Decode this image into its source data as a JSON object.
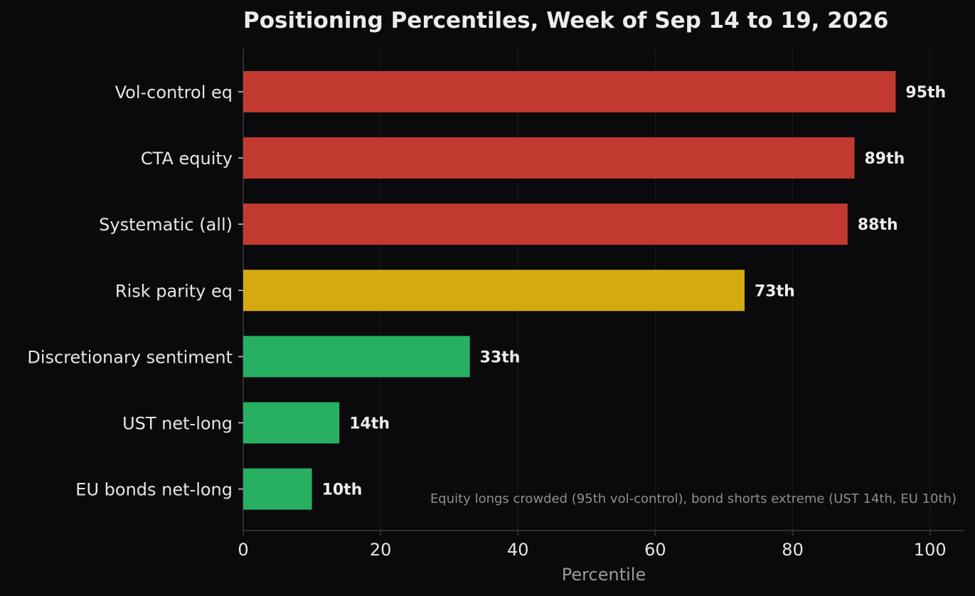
{
  "chart_data": {
    "type": "bar",
    "orientation": "horizontal",
    "title": "Positioning Percentiles, Week of Sep 14 to 19, 2026",
    "xlabel": "Percentile",
    "ylabel": "",
    "xlim": [
      0,
      105
    ],
    "xticks": [
      0,
      20,
      40,
      60,
      80,
      100
    ],
    "grid": "vertical",
    "legend": "none",
    "categories": [
      "Vol-control eq",
      "CTA equity",
      "Systematic (all)",
      "Risk parity eq",
      "Discretionary sentiment",
      "UST net-long",
      "EU bonds net-long"
    ],
    "values": [
      95,
      89,
      88,
      73,
      33,
      14,
      10
    ],
    "data_labels": [
      "95th",
      "89th",
      "88th",
      "73th",
      "33th",
      "14th",
      "10th"
    ],
    "bar_colors": [
      "#c23a2f",
      "#c23a2f",
      "#c23a2f",
      "#d4aa10",
      "#27b062",
      "#27b062",
      "#27b062"
    ],
    "annotation": "Equity longs crowded (95th vol-control), bond shorts extreme (UST 14th, EU 10th)"
  },
  "colors": {
    "background": "#0a0a0c",
    "text": "#e6e6e6",
    "muted": "#9a9a9a",
    "grid": "#1c1c20",
    "axis": "#3a3a3e"
  }
}
